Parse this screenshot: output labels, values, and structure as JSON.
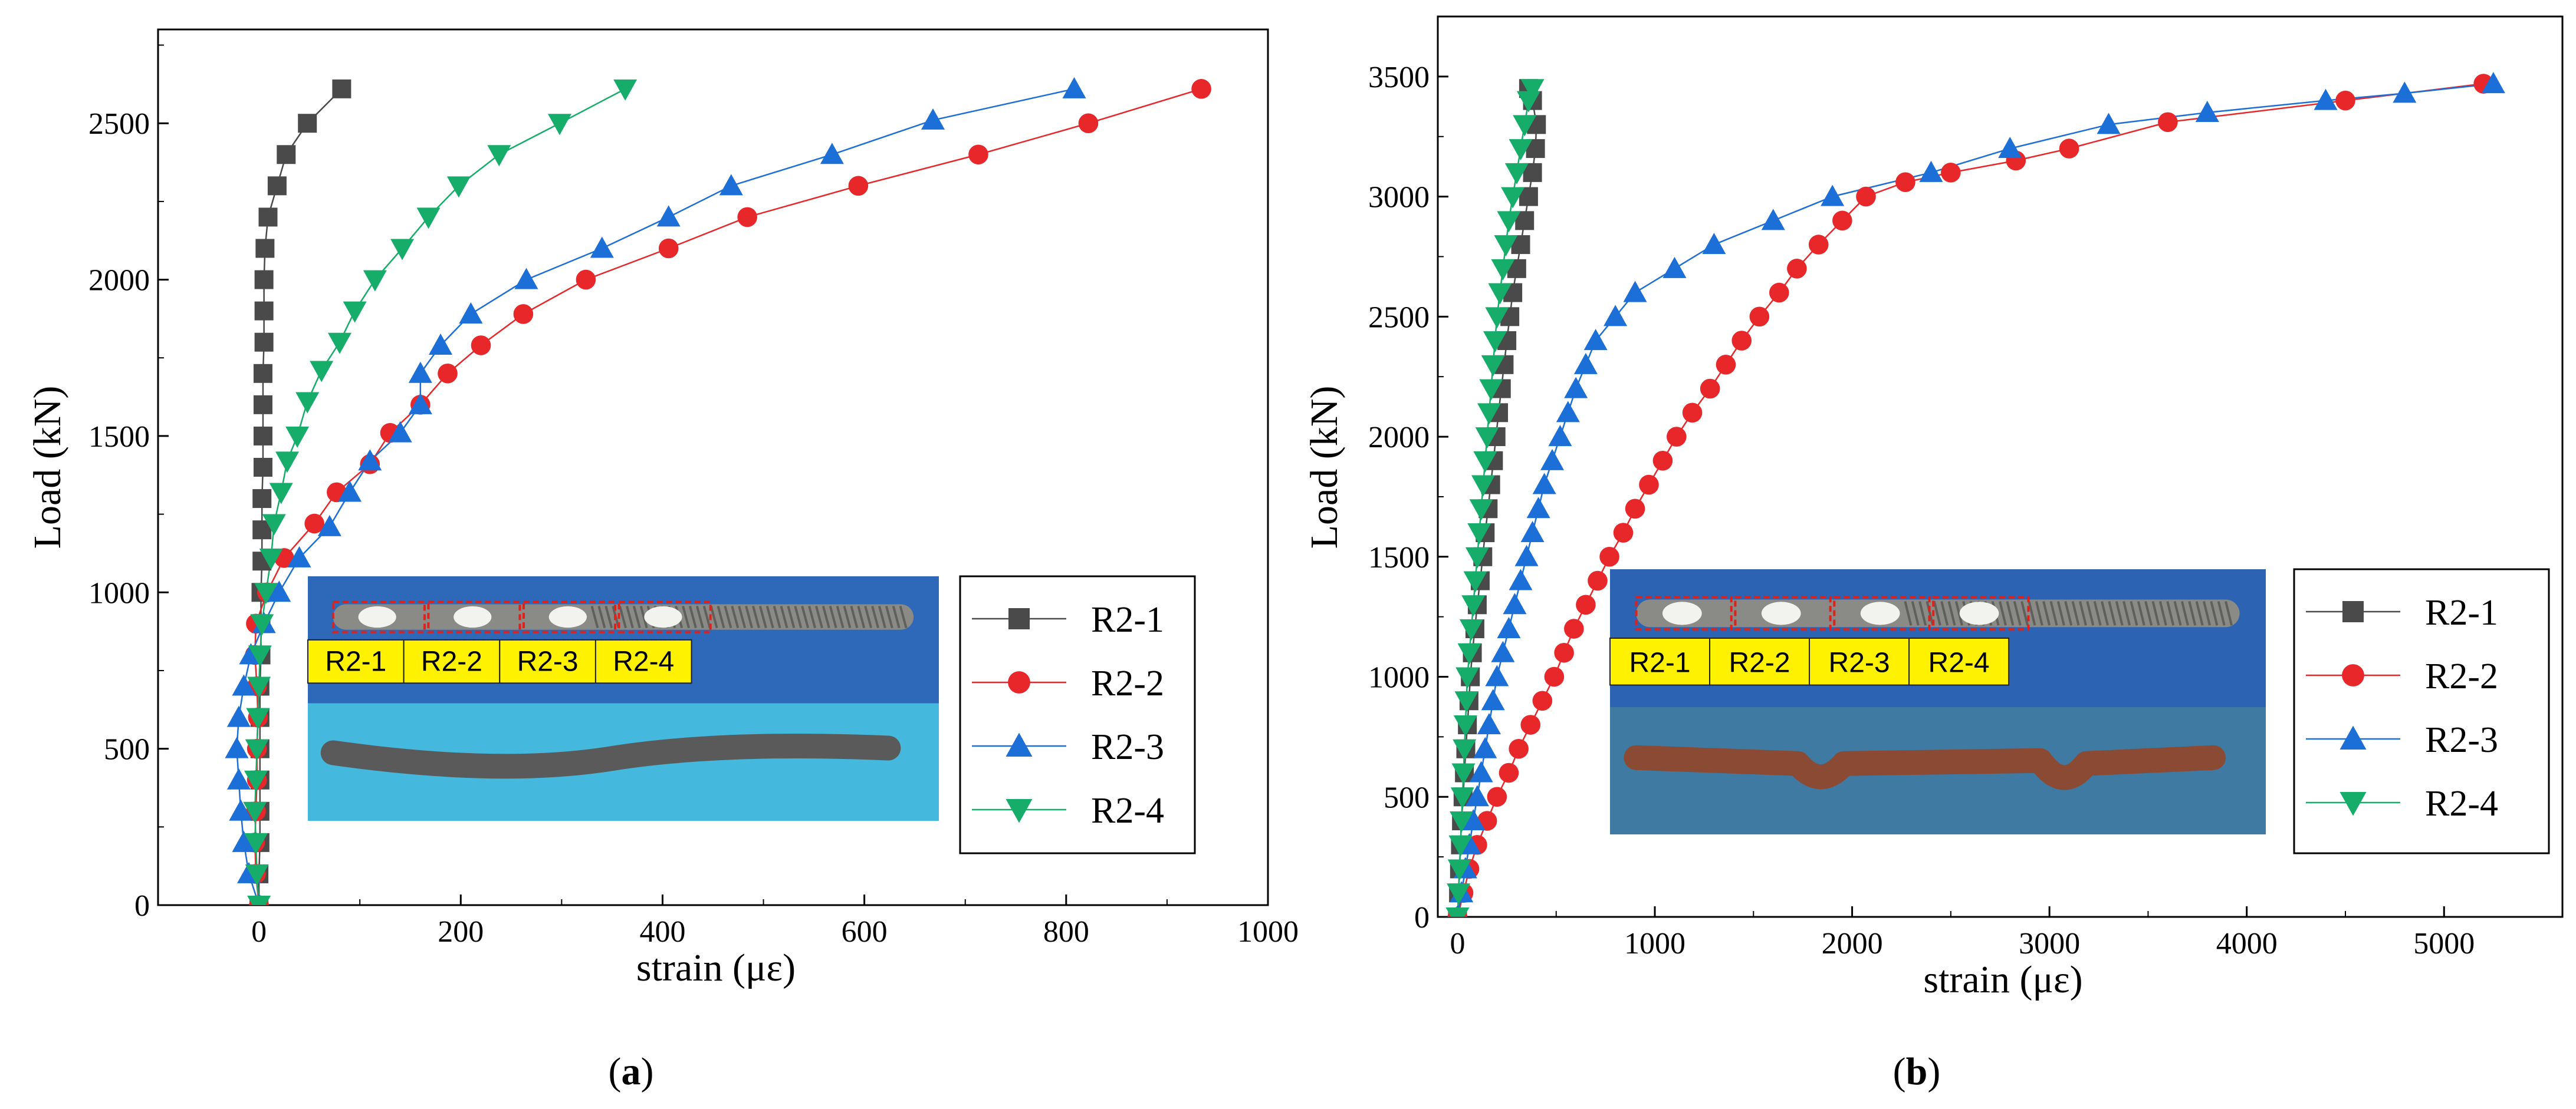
{
  "chart_data": [
    {
      "type": "line",
      "caption_prefix": "(",
      "caption_letter": "a",
      "caption_suffix": ")",
      "xlabel": "strain (με)",
      "ylabel": "Load (kN)",
      "xlim": [
        -100,
        1000
      ],
      "ylim": [
        0,
        2800
      ],
      "xticks": [
        0,
        200,
        400,
        600,
        800,
        1000
      ],
      "yticks": [
        0,
        500,
        1000,
        1500,
        2000,
        2500
      ],
      "legend_position": "right",
      "inset_labels": [
        "R2-1",
        "R2-2",
        "R2-3",
        "R2-4"
      ],
      "series": [
        {
          "name": "R2-1",
          "color": "#4a4a4a",
          "marker": "square",
          "points": [
            [
              0,
              0
            ],
            [
              0,
              100
            ],
            [
              1,
              200
            ],
            [
              1,
              300
            ],
            [
              1,
              400
            ],
            [
              1,
              500
            ],
            [
              1,
              600
            ],
            [
              1,
              700
            ],
            [
              2,
              800
            ],
            [
              2,
              900
            ],
            [
              2,
              1000
            ],
            [
              3,
              1100
            ],
            [
              3,
              1200
            ],
            [
              3,
              1300
            ],
            [
              4,
              1400
            ],
            [
              4,
              1500
            ],
            [
              4,
              1600
            ],
            [
              4,
              1700
            ],
            [
              5,
              1800
            ],
            [
              5,
              1900
            ],
            [
              5,
              2000
            ],
            [
              6,
              2100
            ],
            [
              9,
              2200
            ],
            [
              18,
              2300
            ],
            [
              27,
              2400
            ],
            [
              48,
              2500
            ],
            [
              82,
              2610
            ]
          ]
        },
        {
          "name": "R2-2",
          "color": "#e8272a",
          "marker": "circle",
          "points": [
            [
              0,
              0
            ],
            [
              -3,
              100
            ],
            [
              -4,
              200
            ],
            [
              -3,
              300
            ],
            [
              -2,
              400
            ],
            [
              -2,
              500
            ],
            [
              -1,
              600
            ],
            [
              -2,
              700
            ],
            [
              -4,
              800
            ],
            [
              -3,
              900
            ],
            [
              8,
              1000
            ],
            [
              25,
              1110
            ],
            [
              55,
              1220
            ],
            [
              77,
              1320
            ],
            [
              110,
              1410
            ],
            [
              130,
              1510
            ],
            [
              160,
              1600
            ],
            [
              187,
              1700
            ],
            [
              220,
              1790
            ],
            [
              262,
              1890
            ],
            [
              324,
              2000
            ],
            [
              406,
              2100
            ],
            [
              484,
              2200
            ],
            [
              594,
              2300
            ],
            [
              713,
              2400
            ],
            [
              822,
              2500
            ],
            [
              934,
              2610
            ]
          ]
        },
        {
          "name": "R2-3",
          "color": "#1c6fd6",
          "marker": "triangle-up",
          "points": [
            [
              0,
              0
            ],
            [
              -10,
              100
            ],
            [
              -15,
              200
            ],
            [
              -18,
              300
            ],
            [
              -20,
              400
            ],
            [
              -22,
              500
            ],
            [
              -20,
              600
            ],
            [
              -15,
              700
            ],
            [
              -8,
              800
            ],
            [
              5,
              900
            ],
            [
              20,
              1000
            ],
            [
              40,
              1110
            ],
            [
              70,
              1210
            ],
            [
              90,
              1320
            ],
            [
              110,
              1420
            ],
            [
              140,
              1510
            ],
            [
              160,
              1600
            ],
            [
              160,
              1700
            ],
            [
              180,
              1790
            ],
            [
              210,
              1890
            ],
            [
              265,
              2000
            ],
            [
              340,
              2100
            ],
            [
              406,
              2200
            ],
            [
              468,
              2300
            ],
            [
              568,
              2400
            ],
            [
              668,
              2510
            ],
            [
              808,
              2610
            ]
          ]
        },
        {
          "name": "R2-4",
          "color": "#16ad6a",
          "marker": "triangle-down",
          "points": [
            [
              0,
              0
            ],
            [
              -2,
              100
            ],
            [
              -3,
              200
            ],
            [
              -4,
              300
            ],
            [
              -3,
              400
            ],
            [
              -2,
              500
            ],
            [
              -1,
              600
            ],
            [
              0,
              700
            ],
            [
              1,
              800
            ],
            [
              3,
              900
            ],
            [
              7,
              1000
            ],
            [
              12,
              1110
            ],
            [
              15,
              1220
            ],
            [
              22,
              1320
            ],
            [
              28,
              1420
            ],
            [
              38,
              1500
            ],
            [
              48,
              1610
            ],
            [
              62,
              1710
            ],
            [
              80,
              1800
            ],
            [
              95,
              1900
            ],
            [
              115,
              2000
            ],
            [
              142,
              2100
            ],
            [
              168,
              2200
            ],
            [
              198,
              2300
            ],
            [
              238,
              2400
            ],
            [
              298,
              2500
            ],
            [
              363,
              2610
            ]
          ]
        }
      ]
    },
    {
      "type": "line",
      "caption_prefix": "(",
      "caption_letter": "b",
      "caption_suffix": ")",
      "xlabel": "strain (με)",
      "ylabel": "Load (kN)",
      "xlim": [
        -100,
        5600
      ],
      "ylim": [
        0,
        3750
      ],
      "xticks": [
        0,
        1000,
        2000,
        3000,
        4000,
        5000
      ],
      "yticks": [
        0,
        500,
        1000,
        1500,
        2000,
        2500,
        3000,
        3500
      ],
      "legend_position": "right",
      "inset_labels": [
        "R2-1",
        "R2-2",
        "R2-3",
        "R2-4"
      ],
      "series": [
        {
          "name": "R2-1",
          "color": "#4a4a4a",
          "marker": "square",
          "points": [
            [
              0,
              0
            ],
            [
              5,
              100
            ],
            [
              10,
              200
            ],
            [
              15,
              300
            ],
            [
              20,
              400
            ],
            [
              28,
              500
            ],
            [
              35,
              600
            ],
            [
              42,
              700
            ],
            [
              50,
              800
            ],
            [
              58,
              900
            ],
            [
              65,
              1000
            ],
            [
              75,
              1100
            ],
            [
              88,
              1200
            ],
            [
              100,
              1300
            ],
            [
              115,
              1400
            ],
            [
              128,
              1500
            ],
            [
              140,
              1600
            ],
            [
              155,
              1700
            ],
            [
              168,
              1800
            ],
            [
              182,
              1900
            ],
            [
              195,
              2000
            ],
            [
              208,
              2100
            ],
            [
              222,
              2200
            ],
            [
              236,
              2300
            ],
            [
              250,
              2400
            ],
            [
              265,
              2500
            ],
            [
              280,
              2600
            ],
            [
              300,
              2700
            ],
            [
              320,
              2800
            ],
            [
              340,
              2900
            ],
            [
              360,
              3000
            ],
            [
              380,
              3100
            ],
            [
              395,
              3200
            ],
            [
              400,
              3300
            ],
            [
              380,
              3400
            ],
            [
              360,
              3450
            ]
          ]
        },
        {
          "name": "R2-2",
          "color": "#e8272a",
          "marker": "circle",
          "points": [
            [
              0,
              0
            ],
            [
              30,
              100
            ],
            [
              60,
              200
            ],
            [
              100,
              300
            ],
            [
              150,
              400
            ],
            [
              200,
              500
            ],
            [
              260,
              600
            ],
            [
              310,
              700
            ],
            [
              370,
              800
            ],
            [
              430,
              900
            ],
            [
              490,
              1000
            ],
            [
              540,
              1100
            ],
            [
              590,
              1200
            ],
            [
              650,
              1300
            ],
            [
              710,
              1400
            ],
            [
              770,
              1500
            ],
            [
              840,
              1600
            ],
            [
              900,
              1700
            ],
            [
              970,
              1800
            ],
            [
              1040,
              1900
            ],
            [
              1110,
              2000
            ],
            [
              1190,
              2100
            ],
            [
              1280,
              2200
            ],
            [
              1360,
              2300
            ],
            [
              1440,
              2400
            ],
            [
              1530,
              2500
            ],
            [
              1630,
              2600
            ],
            [
              1720,
              2700
            ],
            [
              1830,
              2800
            ],
            [
              1950,
              2900
            ],
            [
              2070,
              3000
            ],
            [
              2270,
              3060
            ],
            [
              2500,
              3100
            ],
            [
              2830,
              3150
            ],
            [
              3100,
              3200
            ],
            [
              3600,
              3310
            ],
            [
              4500,
              3400
            ],
            [
              5200,
              3470
            ]
          ]
        },
        {
          "name": "R2-3",
          "color": "#1c6fd6",
          "marker": "triangle-up",
          "points": [
            [
              0,
              0
            ],
            [
              20,
              100
            ],
            [
              40,
              200
            ],
            [
              60,
              300
            ],
            [
              80,
              400
            ],
            [
              100,
              500
            ],
            [
              120,
              600
            ],
            [
              140,
              700
            ],
            [
              160,
              800
            ],
            [
              180,
              900
            ],
            [
              200,
              1000
            ],
            [
              230,
              1100
            ],
            [
              260,
              1200
            ],
            [
              290,
              1300
            ],
            [
              320,
              1400
            ],
            [
              350,
              1500
            ],
            [
              380,
              1600
            ],
            [
              410,
              1700
            ],
            [
              440,
              1800
            ],
            [
              480,
              1900
            ],
            [
              520,
              2000
            ],
            [
              560,
              2100
            ],
            [
              600,
              2200
            ],
            [
              650,
              2300
            ],
            [
              700,
              2400
            ],
            [
              800,
              2500
            ],
            [
              900,
              2600
            ],
            [
              1100,
              2700
            ],
            [
              1300,
              2800
            ],
            [
              1600,
              2900
            ],
            [
              1900,
              3000
            ],
            [
              2400,
              3100
            ],
            [
              2800,
              3200
            ],
            [
              3300,
              3300
            ],
            [
              3800,
              3350
            ],
            [
              4400,
              3400
            ],
            [
              4800,
              3430
            ],
            [
              5250,
              3470
            ]
          ]
        },
        {
          "name": "R2-4",
          "color": "#16ad6a",
          "marker": "triangle-down",
          "points": [
            [
              0,
              0
            ],
            [
              5,
              100
            ],
            [
              10,
              200
            ],
            [
              15,
              300
            ],
            [
              20,
              400
            ],
            [
              25,
              500
            ],
            [
              30,
              600
            ],
            [
              35,
              700
            ],
            [
              40,
              800
            ],
            [
              45,
              900
            ],
            [
              50,
              1000
            ],
            [
              60,
              1100
            ],
            [
              70,
              1200
            ],
            [
              80,
              1300
            ],
            [
              90,
              1400
            ],
            [
              100,
              1500
            ],
            [
              110,
              1600
            ],
            [
              120,
              1700
            ],
            [
              130,
              1800
            ],
            [
              140,
              1900
            ],
            [
              150,
              2000
            ],
            [
              160,
              2100
            ],
            [
              170,
              2200
            ],
            [
              180,
              2300
            ],
            [
              190,
              2400
            ],
            [
              200,
              2500
            ],
            [
              215,
              2600
            ],
            [
              230,
              2700
            ],
            [
              245,
              2800
            ],
            [
              260,
              2900
            ],
            [
              280,
              3000
            ],
            [
              300,
              3100
            ],
            [
              320,
              3200
            ],
            [
              340,
              3300
            ],
            [
              360,
              3400
            ],
            [
              380,
              3450
            ]
          ]
        }
      ]
    }
  ]
}
